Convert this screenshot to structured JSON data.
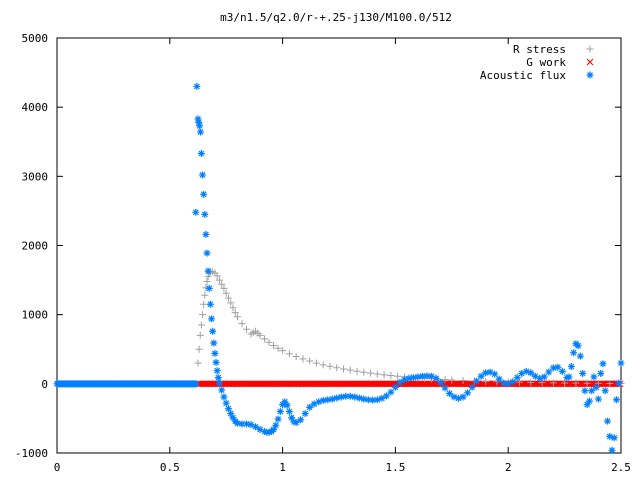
{
  "chart_data": {
    "type": "scatter",
    "title": "m3/n1.5/q2.0/r-+.25-j130/M100.0/512",
    "xlabel": "",
    "ylabel": "",
    "xlim": [
      0,
      2.5
    ],
    "ylim": [
      -1000,
      5000
    ],
    "x_ticks": [
      "0",
      "0.5",
      "1",
      "1.5",
      "2",
      "2.5"
    ],
    "y_ticks": [
      "-1000",
      "0",
      "1000",
      "2000",
      "3000",
      "4000",
      "5000"
    ],
    "legend_position": "top-right",
    "grid": false,
    "series": [
      {
        "name": "R stress",
        "marker": "+",
        "color": "#a0a0a0",
        "points": [
          [
            0.625,
            300
          ],
          [
            0.63,
            500
          ],
          [
            0.635,
            700
          ],
          [
            0.64,
            850
          ],
          [
            0.645,
            1000
          ],
          [
            0.65,
            1150
          ],
          [
            0.655,
            1280
          ],
          [
            0.66,
            1390
          ],
          [
            0.665,
            1480
          ],
          [
            0.67,
            1550
          ],
          [
            0.675,
            1600
          ],
          [
            0.68,
            1620
          ],
          [
            0.69,
            1620
          ],
          [
            0.7,
            1600
          ],
          [
            0.71,
            1560
          ],
          [
            0.72,
            1500
          ],
          [
            0.73,
            1440
          ],
          [
            0.74,
            1380
          ],
          [
            0.75,
            1310
          ],
          [
            0.76,
            1240
          ],
          [
            0.77,
            1170
          ],
          [
            0.78,
            1100
          ],
          [
            0.79,
            1030
          ],
          [
            0.8,
            970
          ],
          [
            0.82,
            870
          ],
          [
            0.84,
            790
          ],
          [
            0.86,
            720
          ],
          [
            0.87,
            740
          ],
          [
            0.88,
            760
          ],
          [
            0.89,
            730
          ],
          [
            0.9,
            700
          ],
          [
            0.92,
            650
          ],
          [
            0.94,
            600
          ],
          [
            0.96,
            555
          ],
          [
            0.98,
            515
          ],
          [
            1.0,
            480
          ],
          [
            1.03,
            435
          ],
          [
            1.06,
            395
          ],
          [
            1.09,
            360
          ],
          [
            1.12,
            330
          ],
          [
            1.15,
            300
          ],
          [
            1.18,
            275
          ],
          [
            1.21,
            252
          ],
          [
            1.24,
            232
          ],
          [
            1.27,
            215
          ],
          [
            1.3,
            198
          ],
          [
            1.33,
            182
          ],
          [
            1.36,
            168
          ],
          [
            1.39,
            155
          ],
          [
            1.42,
            142
          ],
          [
            1.45,
            130
          ],
          [
            1.48,
            120
          ],
          [
            1.51,
            110
          ],
          [
            1.54,
            101
          ],
          [
            1.57,
            93
          ],
          [
            1.6,
            85
          ],
          [
            1.63,
            78
          ],
          [
            1.66,
            72
          ],
          [
            1.69,
            66
          ],
          [
            1.72,
            60
          ],
          [
            1.75,
            55
          ],
          [
            1.8,
            48
          ],
          [
            1.85,
            42
          ],
          [
            1.9,
            36
          ],
          [
            1.95,
            31
          ],
          [
            2.0,
            27
          ],
          [
            2.05,
            23
          ],
          [
            2.1,
            20
          ],
          [
            2.15,
            17
          ],
          [
            2.2,
            14
          ],
          [
            2.25,
            12
          ],
          [
            2.3,
            10
          ],
          [
            2.35,
            8
          ],
          [
            2.4,
            6
          ],
          [
            2.45,
            5
          ],
          [
            2.5,
            4
          ]
        ]
      },
      {
        "name": "G work",
        "marker": "x",
        "color": "#ff0000",
        "x_start": 0.63,
        "x_end": 2.5,
        "y": 0
      },
      {
        "name": "Acoustic flux",
        "marker": "*",
        "color": "#0080ff",
        "points": [
          [
            0.615,
            2480
          ],
          [
            0.62,
            4300
          ],
          [
            0.625,
            3830
          ],
          [
            0.628,
            3780
          ],
          [
            0.632,
            3730
          ],
          [
            0.636,
            3640
          ],
          [
            0.64,
            3330
          ],
          [
            0.645,
            3020
          ],
          [
            0.65,
            2740
          ],
          [
            0.655,
            2450
          ],
          [
            0.66,
            2160
          ],
          [
            0.665,
            1890
          ],
          [
            0.67,
            1630
          ],
          [
            0.675,
            1380
          ],
          [
            0.68,
            1150
          ],
          [
            0.685,
            940
          ],
          [
            0.69,
            760
          ],
          [
            0.695,
            590
          ],
          [
            0.7,
            440
          ],
          [
            0.705,
            310
          ],
          [
            0.71,
            190
          ],
          [
            0.715,
            90
          ],
          [
            0.72,
            10
          ],
          [
            0.73,
            -90
          ],
          [
            0.74,
            -190
          ],
          [
            0.75,
            -280
          ],
          [
            0.76,
            -360
          ],
          [
            0.77,
            -430
          ],
          [
            0.78,
            -490
          ],
          [
            0.79,
            -540
          ],
          [
            0.8,
            -570
          ],
          [
            0.82,
            -580
          ],
          [
            0.84,
            -580
          ],
          [
            0.86,
            -590
          ],
          [
            0.88,
            -620
          ],
          [
            0.9,
            -660
          ],
          [
            0.92,
            -690
          ],
          [
            0.93,
            -700
          ],
          [
            0.94,
            -700
          ],
          [
            0.95,
            -690
          ],
          [
            0.96,
            -660
          ],
          [
            0.97,
            -600
          ],
          [
            0.98,
            -510
          ],
          [
            0.99,
            -400
          ],
          [
            1.0,
            -300
          ],
          [
            1.01,
            -260
          ],
          [
            1.02,
            -310
          ],
          [
            1.03,
            -400
          ],
          [
            1.04,
            -490
          ],
          [
            1.05,
            -550
          ],
          [
            1.06,
            -560
          ],
          [
            1.08,
            -520
          ],
          [
            1.1,
            -430
          ],
          [
            1.12,
            -340
          ],
          [
            1.14,
            -290
          ],
          [
            1.16,
            -260
          ],
          [
            1.18,
            -240
          ],
          [
            1.2,
            -230
          ],
          [
            1.22,
            -220
          ],
          [
            1.24,
            -205
          ],
          [
            1.26,
            -190
          ],
          [
            1.28,
            -180
          ],
          [
            1.3,
            -180
          ],
          [
            1.32,
            -190
          ],
          [
            1.34,
            -205
          ],
          [
            1.36,
            -220
          ],
          [
            1.38,
            -230
          ],
          [
            1.4,
            -235
          ],
          [
            1.42,
            -230
          ],
          [
            1.44,
            -210
          ],
          [
            1.46,
            -175
          ],
          [
            1.48,
            -120
          ],
          [
            1.5,
            -50
          ],
          [
            1.52,
            20
          ],
          [
            1.54,
            60
          ],
          [
            1.56,
            80
          ],
          [
            1.58,
            90
          ],
          [
            1.6,
            100
          ],
          [
            1.62,
            110
          ],
          [
            1.64,
            115
          ],
          [
            1.66,
            110
          ],
          [
            1.68,
            80
          ],
          [
            1.7,
            20
          ],
          [
            1.72,
            -60
          ],
          [
            1.74,
            -140
          ],
          [
            1.76,
            -190
          ],
          [
            1.78,
            -210
          ],
          [
            1.8,
            -190
          ],
          [
            1.82,
            -130
          ],
          [
            1.84,
            -50
          ],
          [
            1.86,
            40
          ],
          [
            1.88,
            110
          ],
          [
            1.9,
            160
          ],
          [
            1.92,
            170
          ],
          [
            1.94,
            140
          ],
          [
            1.96,
            70
          ],
          [
            1.98,
            10
          ],
          [
            2.0,
            0
          ],
          [
            2.02,
            30
          ],
          [
            2.04,
            90
          ],
          [
            2.06,
            150
          ],
          [
            2.08,
            180
          ],
          [
            2.1,
            160
          ],
          [
            2.12,
            110
          ],
          [
            2.14,
            80
          ],
          [
            2.16,
            100
          ],
          [
            2.18,
            170
          ],
          [
            2.2,
            230
          ],
          [
            2.22,
            240
          ],
          [
            2.24,
            180
          ],
          [
            2.26,
            90
          ],
          [
            2.27,
            100
          ],
          [
            2.28,
            250
          ],
          [
            2.29,
            450
          ],
          [
            2.3,
            580
          ],
          [
            2.31,
            550
          ],
          [
            2.32,
            400
          ],
          [
            2.33,
            150
          ],
          [
            2.34,
            -100
          ],
          [
            2.35,
            -300
          ],
          [
            2.36,
            -250
          ],
          [
            2.37,
            -100
          ],
          [
            2.38,
            100
          ],
          [
            2.39,
            -50
          ],
          [
            2.4,
            -220
          ],
          [
            2.41,
            150
          ],
          [
            2.42,
            290
          ],
          [
            2.43,
            -100
          ],
          [
            2.44,
            -540
          ],
          [
            2.45,
            -760
          ],
          [
            2.46,
            -960
          ],
          [
            2.47,
            -780
          ],
          [
            2.48,
            -230
          ],
          [
            2.49,
            10
          ],
          [
            2.5,
            300
          ]
        ],
        "baseline": {
          "x_start": 0.0,
          "x_end": 0.615,
          "y": 0
        }
      }
    ]
  }
}
